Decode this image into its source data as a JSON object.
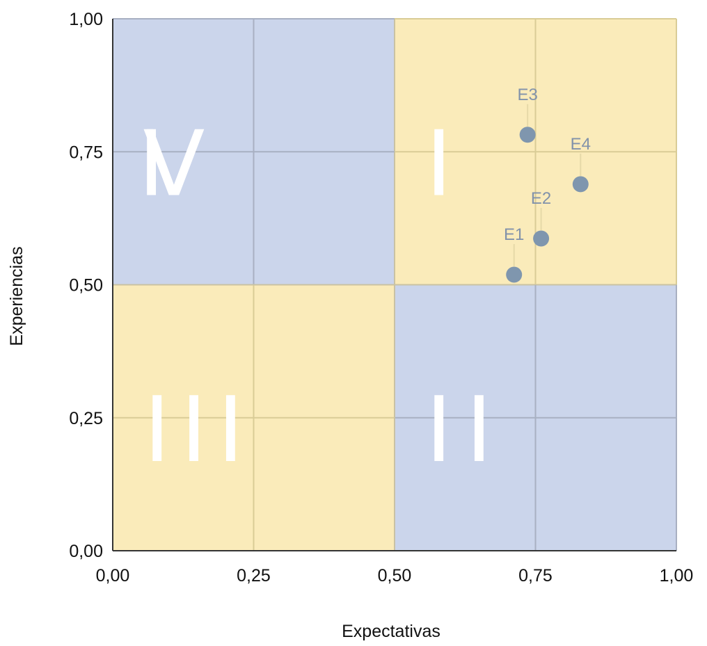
{
  "chart_data": {
    "type": "scatter",
    "xlabel": "Expectativas",
    "ylabel": "Experiencias",
    "xlim": [
      0,
      1
    ],
    "ylim": [
      0,
      1
    ],
    "xticks": [
      "0,00",
      "0,25",
      "0,50",
      "0,75",
      "1,00"
    ],
    "yticks": [
      "0,00",
      "0,25",
      "0,50",
      "0,75",
      "1,00"
    ],
    "grid": true,
    "quadrants": [
      {
        "label": "I",
        "x": [
          0.5,
          1
        ],
        "y": [
          0.5,
          1
        ],
        "color": "#faebba"
      },
      {
        "label": "II",
        "x": [
          0.5,
          1
        ],
        "y": [
          0,
          0.5
        ],
        "color": "#cbd5eb"
      },
      {
        "label": "III",
        "x": [
          0,
          0.5
        ],
        "y": [
          0,
          0.5
        ],
        "color": "#faebba"
      },
      {
        "label": "IV",
        "x": [
          0,
          0.5
        ],
        "y": [
          0.5,
          1
        ],
        "color": "#cbd5eb"
      }
    ],
    "points": [
      {
        "label": "E1",
        "x": 0.712,
        "y": 0.519
      },
      {
        "label": "E2",
        "x": 0.76,
        "y": 0.587
      },
      {
        "label": "E3",
        "x": 0.736,
        "y": 0.782
      },
      {
        "label": "E4",
        "x": 0.83,
        "y": 0.689
      }
    ],
    "point_color": "#7f96ae",
    "label_color": "#8192aa"
  }
}
